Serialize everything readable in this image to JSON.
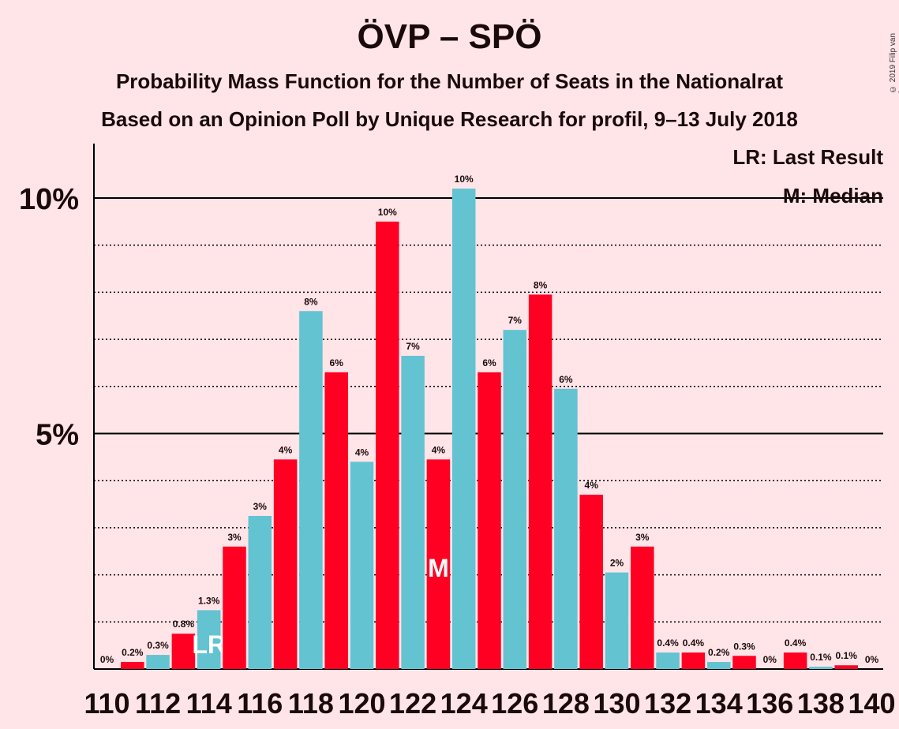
{
  "title": "ÖVP – SPÖ",
  "subtitle": "Probability Mass Function for the Number of Seats in the Nationalrat",
  "subtitle2": "Based on an Opinion Poll by Unique Research for profil, 9–13 July 2018",
  "copyright": "© 2019 Filip van Laenen",
  "legend": {
    "lr": "LR: Last Result",
    "m": "M: Median"
  },
  "colors": {
    "red": "#ff0022",
    "blue": "#63c3d1",
    "background": "#ffe4e8"
  },
  "chart_data": {
    "type": "bar",
    "x": [
      110,
      111,
      112,
      113,
      114,
      115,
      116,
      117,
      118,
      119,
      120,
      121,
      122,
      123,
      124,
      125,
      126,
      127,
      128,
      129,
      130,
      131,
      132,
      133,
      134,
      135,
      136,
      137,
      138,
      139,
      140
    ],
    "values": [
      0,
      0.15,
      0.3,
      0.75,
      1.25,
      2.6,
      3.25,
      4.45,
      7.6,
      6.3,
      4.4,
      9.5,
      6.65,
      4.45,
      10.2,
      6.3,
      7.2,
      7.95,
      5.95,
      3.7,
      2.05,
      2.6,
      0.35,
      0.35,
      0.15,
      0.28,
      0,
      0.35,
      0.05,
      0.08,
      0
    ],
    "labels": [
      "0%",
      "0.2%",
      "0.3%",
      "0.8%",
      "1.3%",
      "3%",
      "3%",
      "4%",
      "8%",
      "6%",
      "4%",
      "10%",
      "7%",
      "4%",
      "10%",
      "6%",
      "7%",
      "8%",
      "6%",
      "4%",
      "2%",
      "3%",
      "0.4%",
      "0.4%",
      "0.2%",
      "0.3%",
      "0%",
      "0.4%",
      "0.1%",
      "0.1%",
      "0%"
    ],
    "x_tick_labels": [
      "110",
      "112",
      "114",
      "116",
      "118",
      "120",
      "122",
      "124",
      "126",
      "128",
      "130",
      "132",
      "134",
      "136",
      "138",
      "140"
    ],
    "y_tick_labels": [
      "5%",
      "10%"
    ],
    "y_ticks": [
      5,
      10
    ],
    "ylim": [
      0,
      11.2
    ],
    "last_result": 114,
    "median": 123,
    "lr_text": "LR",
    "m_text": "M",
    "grid": "dotted every 1%, solid at 5% and 10%"
  }
}
